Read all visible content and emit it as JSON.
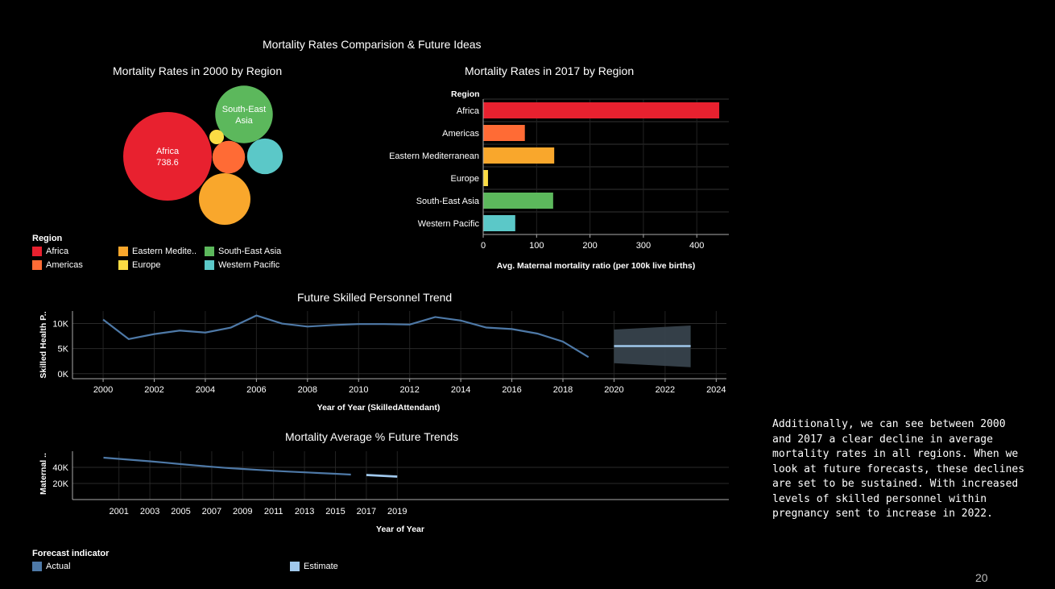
{
  "main_title": "Mortality Rates Comparision & Future Ideas",
  "page_number": "20",
  "side_note": "Additionally, we can see between 2000\nand 2017 a clear decline in average\nmortality rates in all regions. When we\nlook at future forecasts, these declines\nare set to be sustained. With increased\nlevels of skilled personnel within\npregnancy sent to increase in 2022.",
  "colors": {
    "Africa": "#e8212f",
    "Americas": "#ff6b35",
    "Eastern Mediterranean": "#f9a72c",
    "Europe": "#fbdc44",
    "South-East Asia": "#5cb85c",
    "Western Pacific": "#5bc8c8",
    "actual": "#4e79a7",
    "estimate": "#a0c8ec"
  },
  "region_legend": {
    "title": "Region",
    "items": [
      {
        "label": "Africa",
        "key": "Africa"
      },
      {
        "label": "Eastern Medite..",
        "key": "Eastern Mediterranean"
      },
      {
        "label": "South-East Asia",
        "key": "South-East Asia"
      },
      {
        "label": "Americas",
        "key": "Americas"
      },
      {
        "label": "Europe",
        "key": "Europe"
      },
      {
        "label": "Western Pacific",
        "key": "Western Pacific"
      }
    ]
  },
  "forecast_legend": {
    "title": "Forecast indicator",
    "items": [
      {
        "label": "Actual",
        "key": "actual"
      },
      {
        "label": "Estimate",
        "key": "estimate"
      }
    ]
  },
  "chart_data": [
    {
      "type": "bubble",
      "title": "Mortality Rates in 2000 by Region",
      "bubbles": [
        {
          "region": "Africa",
          "label": "Africa",
          "value_label": "738.6",
          "value": 738.6
        },
        {
          "region": "South-East Asia",
          "label": "South-East Asia",
          "value_label": "",
          "value": 312
        },
        {
          "region": "Eastern Mediterranean",
          "label": "",
          "value_label": "",
          "value": 250
        },
        {
          "region": "Americas",
          "label": "",
          "value_label": "",
          "value": 100
        },
        {
          "region": "Western Pacific",
          "label": "",
          "value_label": "",
          "value": 120
        },
        {
          "region": "Europe",
          "label": "",
          "value_label": "",
          "value": 20
        }
      ]
    },
    {
      "type": "bar",
      "orientation": "horizontal",
      "title": "Mortality Rates in 2017 by Region",
      "row_header": "Region",
      "categories": [
        "Africa",
        "Americas",
        "Eastern Mediterranean",
        "Europe",
        "South-East Asia",
        "Western Pacific"
      ],
      "values": [
        442,
        78,
        133,
        9,
        131,
        60
      ],
      "xlabel": "Avg. Maternal mortality ratio (per 100k live births)",
      "xticks": [
        0,
        100,
        200,
        300,
        400
      ],
      "xlim": [
        0,
        460
      ]
    },
    {
      "type": "line",
      "title": "Future Skilled Personnel Trend",
      "xlabel": "Year of Year (SkilledAttendant)",
      "ylabel": "Skilled Health P..",
      "xticks": [
        2000,
        2002,
        2004,
        2006,
        2008,
        2010,
        2012,
        2014,
        2016,
        2018,
        2020,
        2022,
        2024
      ],
      "yticks": [
        {
          "v": 0,
          "label": "0K"
        },
        {
          "v": 5000,
          "label": "5K"
        },
        {
          "v": 10000,
          "label": "10K"
        }
      ],
      "xlim": [
        1998.8,
        2024.4
      ],
      "ylim": [
        -1000,
        12500
      ],
      "series": [
        {
          "name": "Actual",
          "key": "actual",
          "x": [
            2000,
            2001,
            2002,
            2003,
            2004,
            2005,
            2006,
            2007,
            2008,
            2009,
            2010,
            2011,
            2012,
            2013,
            2014,
            2015,
            2016,
            2017,
            2018,
            2019
          ],
          "y": [
            10800,
            6900,
            7900,
            8600,
            8200,
            9200,
            11600,
            10000,
            9400,
            9700,
            9900,
            9900,
            9800,
            11300,
            10600,
            9200,
            8900,
            8000,
            6400,
            3300
          ]
        },
        {
          "name": "Estimate",
          "key": "estimate",
          "x": [
            2020,
            2023
          ],
          "y": [
            5500,
            5500
          ]
        }
      ],
      "band": {
        "x": [
          2020,
          2023
        ],
        "upper": [
          8800,
          9600
        ],
        "lower": [
          2100,
          1300
        ]
      }
    },
    {
      "type": "line",
      "title": "Mortality Average % Future Trends",
      "xlabel": "Year of Year",
      "ylabel": "Maternal ..",
      "categories": [
        "2000",
        "2001",
        "2002",
        "2003",
        "2004",
        "2005",
        "2006",
        "2007",
        "2008",
        "2009",
        "2010",
        "2011",
        "2012",
        "2013",
        "2014",
        "2015",
        "2016",
        "2017",
        "2018",
        "2019"
      ],
      "xtick_labels": [
        "2001",
        "2003",
        "2005",
        "2007",
        "2009",
        "2011",
        "2013",
        "2015",
        "2017",
        "2019"
      ],
      "yticks": [
        {
          "v": 20000,
          "label": "20K"
        },
        {
          "v": 40000,
          "label": "40K"
        }
      ],
      "ylim": [
        0,
        60000
      ],
      "series": [
        {
          "name": "Actual",
          "key": "actual",
          "x": [
            "2000",
            "2001",
            "2002",
            "2003",
            "2004",
            "2005",
            "2006",
            "2007",
            "2008",
            "2009",
            "2010",
            "2011",
            "2012",
            "2013",
            "2014",
            "2015",
            "2016"
          ],
          "y": [
            52000,
            50500,
            49000,
            47500,
            45800,
            44000,
            42300,
            40700,
            39200,
            38000,
            36800,
            35700,
            34700,
            33800,
            32900,
            32000,
            31000
          ]
        },
        {
          "name": "Estimate",
          "key": "estimate",
          "x": [
            "2017",
            "2018",
            "2019"
          ],
          "y": [
            30500,
            29500,
            28500
          ]
        }
      ]
    }
  ]
}
